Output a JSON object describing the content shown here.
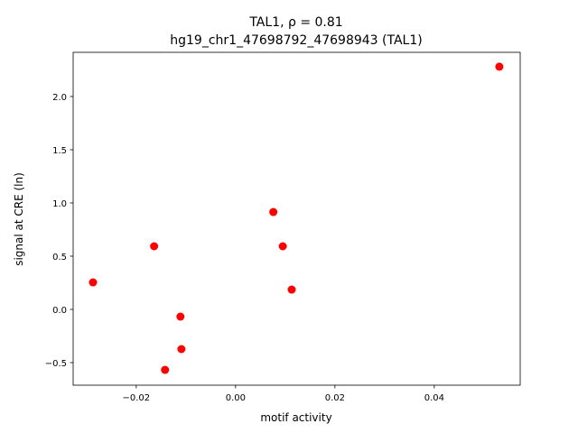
{
  "chart_data": {
    "type": "scatter",
    "title": "TAL1, ρ = 0.81",
    "subtitle": "hg19_chr1_47698792_47698943 (TAL1)",
    "x_label": "motif activity",
    "y_label": "signal at CRE (ln)",
    "color": "#ff0000",
    "x": [
      0.0531,
      0.0076,
      0.0095,
      0.0113,
      -0.0164,
      -0.0287,
      -0.0111,
      -0.0109,
      -0.0142
    ],
    "values": [
      2.28,
      0.915,
      0.593,
      0.186,
      0.593,
      0.254,
      -0.068,
      -0.373,
      -0.568
    ],
    "xlim": [
      -0.0327,
      0.0573
    ],
    "ylim": [
      -0.712,
      2.415
    ],
    "xticks": [
      {
        "value": -0.02,
        "label": "−0.02"
      },
      {
        "value": 0,
        "label": "0.00"
      },
      0.02,
      0.04
    ],
    "yticks": [
      {
        "value": -0.5,
        "label": "−0.5"
      },
      {
        "value": 0,
        "label": "0.0"
      },
      0.5,
      {
        "value": 1,
        "label": "1.0"
      },
      1.5,
      {
        "value": 2,
        "label": "2.0"
      }
    ],
    "grid": false
  }
}
